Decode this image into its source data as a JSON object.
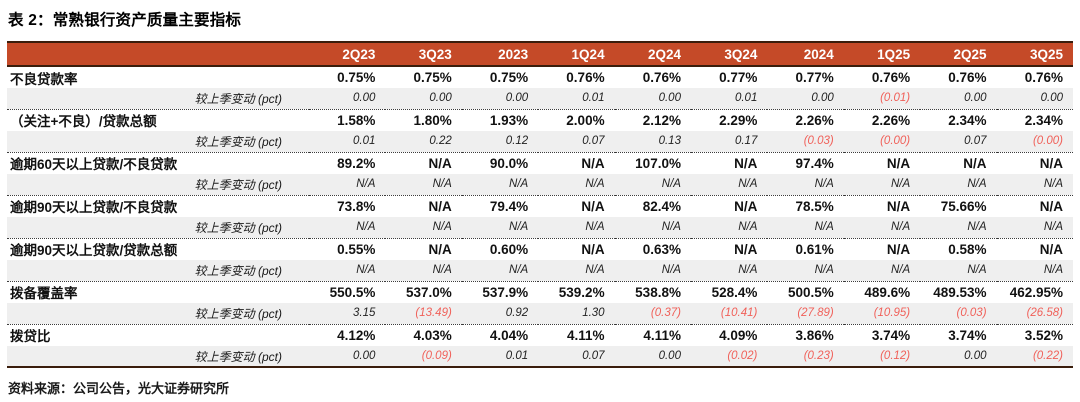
{
  "title": "表 2：常熟银行资产质量主要指标",
  "source": "资料来源：公司公告，光大证券研究所",
  "colors": {
    "header_bg": "#C54A28",
    "dark_border": "#3A1D0C",
    "subrow_bg": "#EFEFEF",
    "negative_red": "#F0615A"
  },
  "table": {
    "columns": [
      "2Q23",
      "3Q23",
      "2023",
      "1Q24",
      "2Q24",
      "3Q24",
      "2024",
      "1Q25",
      "2Q25",
      "3Q25"
    ],
    "change_label": "较上季变动 (pct)",
    "rows": [
      {
        "metric": "不良贷款率",
        "values": [
          "0.75%",
          "0.75%",
          "0.75%",
          "0.76%",
          "0.76%",
          "0.77%",
          "0.77%",
          "0.76%",
          "0.76%",
          "0.76%"
        ],
        "changes": [
          "0.00",
          "0.00",
          "0.00",
          "0.01",
          "0.00",
          "0.01",
          "0.00",
          "(0.01)",
          "0.00",
          "0.00"
        ]
      },
      {
        "metric": "（关注+不良）/贷款总额",
        "values": [
          "1.58%",
          "1.80%",
          "1.93%",
          "2.00%",
          "2.12%",
          "2.29%",
          "2.26%",
          "2.26%",
          "2.34%",
          "2.34%"
        ],
        "changes": [
          "0.01",
          "0.22",
          "0.12",
          "0.07",
          "0.13",
          "0.17",
          "(0.03)",
          "(0.00)",
          "0.07",
          "(0.00)"
        ]
      },
      {
        "metric": "逾期60天以上贷款/不良贷款",
        "values": [
          "89.2%",
          "N/A",
          "90.0%",
          "N/A",
          "107.0%",
          "N/A",
          "97.4%",
          "N/A",
          "N/A",
          "N/A"
        ],
        "changes": [
          "N/A",
          "N/A",
          "N/A",
          "N/A",
          "N/A",
          "N/A",
          "N/A",
          "N/A",
          "N/A",
          "N/A"
        ]
      },
      {
        "metric": "逾期90天以上贷款/不良贷款",
        "values": [
          "73.8%",
          "N/A",
          "79.4%",
          "N/A",
          "82.4%",
          "N/A",
          "78.5%",
          "N/A",
          "75.66%",
          "N/A"
        ],
        "changes": [
          "N/A",
          "N/A",
          "N/A",
          "N/A",
          "N/A",
          "N/A",
          "N/A",
          "N/A",
          "N/A",
          "N/A"
        ]
      },
      {
        "metric": "逾期90天以上贷款/贷款总额",
        "values": [
          "0.55%",
          "N/A",
          "0.60%",
          "N/A",
          "0.63%",
          "N/A",
          "0.61%",
          "N/A",
          "0.58%",
          "N/A"
        ],
        "changes": [
          "N/A",
          "N/A",
          "N/A",
          "N/A",
          "N/A",
          "N/A",
          "N/A",
          "N/A",
          "N/A",
          "N/A"
        ]
      },
      {
        "metric": "拨备覆盖率",
        "values": [
          "550.5%",
          "537.0%",
          "537.9%",
          "539.2%",
          "538.8%",
          "528.4%",
          "500.5%",
          "489.6%",
          "489.53%",
          "462.95%"
        ],
        "changes": [
          "3.15",
          "(13.49)",
          "0.92",
          "1.30",
          "(0.37)",
          "(10.41)",
          "(27.89)",
          "(10.95)",
          "(0.03)",
          "(26.58)"
        ]
      },
      {
        "metric": "拨贷比",
        "values": [
          "4.12%",
          "4.03%",
          "4.04%",
          "4.11%",
          "4.11%",
          "4.09%",
          "3.86%",
          "3.74%",
          "3.74%",
          "3.52%"
        ],
        "changes": [
          "0.00",
          "(0.09)",
          "0.01",
          "0.07",
          "0.00",
          "(0.02)",
          "(0.23)",
          "(0.12)",
          "0.00",
          "(0.22)"
        ]
      }
    ]
  }
}
